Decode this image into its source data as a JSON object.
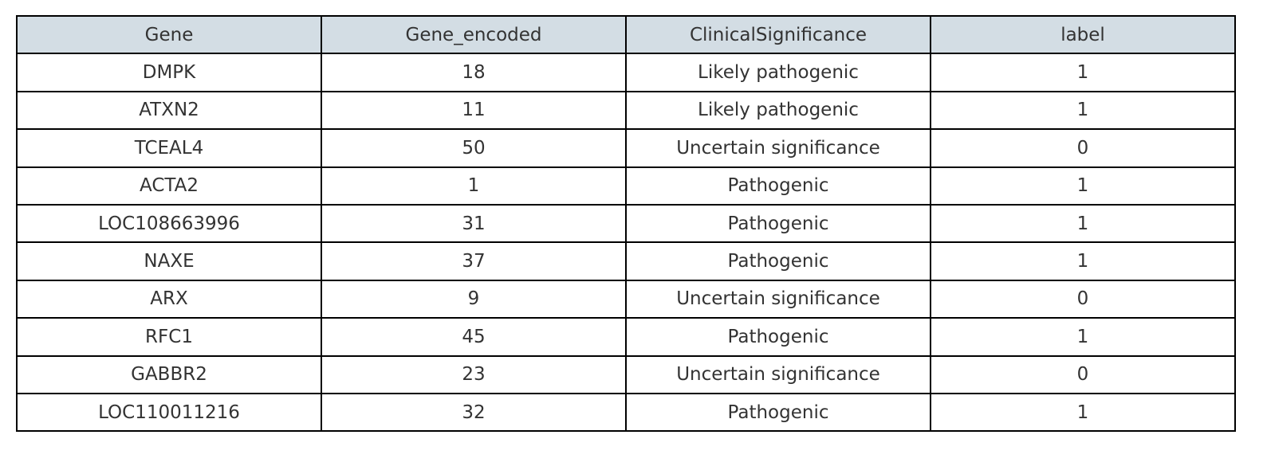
{
  "chart_data": {
    "type": "table",
    "columns": [
      "Gene",
      "Gene_encoded",
      "ClinicalSignificance",
      "label"
    ],
    "rows": [
      [
        "DMPK",
        "18",
        "Likely pathogenic",
        "1"
      ],
      [
        "ATXN2",
        "11",
        "Likely pathogenic",
        "1"
      ],
      [
        "TCEAL4",
        "50",
        "Uncertain significance",
        "0"
      ],
      [
        "ACTA2",
        "1",
        "Pathogenic",
        "1"
      ],
      [
        "LOC108663996",
        "31",
        "Pathogenic",
        "1"
      ],
      [
        "NAXE",
        "37",
        "Pathogenic",
        "1"
      ],
      [
        "ARX",
        "9",
        "Uncertain significance",
        "0"
      ],
      [
        "RFC1",
        "45",
        "Pathogenic",
        "1"
      ],
      [
        "GABBR2",
        "23",
        "Uncertain significance",
        "0"
      ],
      [
        "LOC110011216",
        "32",
        "Pathogenic",
        "1"
      ]
    ],
    "header_color": "#d3dde4",
    "border_color": "#000000",
    "text_color": "#333333"
  }
}
